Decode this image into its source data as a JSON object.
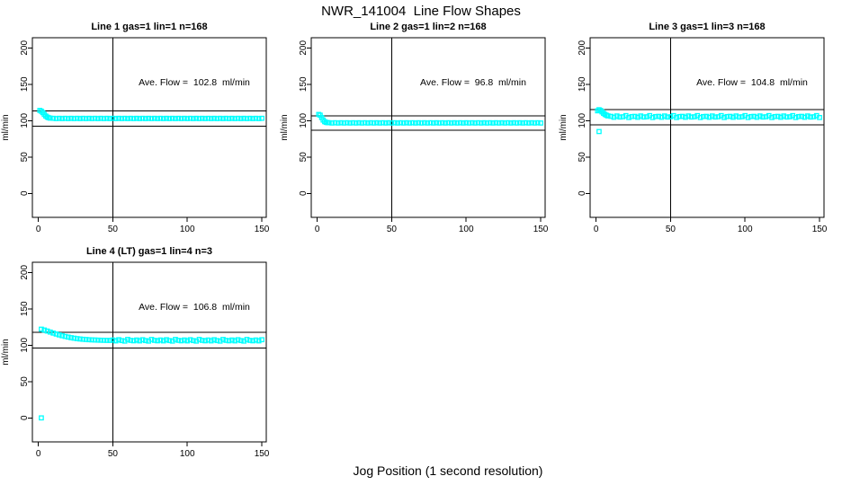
{
  "title": "NWR_141004  Line Flow Shapes",
  "xlabel": "Jog Position (1 second resolution)",
  "colors": {
    "points": "#00ffff",
    "axis": "#000000",
    "background": "#ffffff"
  },
  "chart_data": [
    {
      "type": "scatter",
      "title": "Line 1 gas=1 lin=1 n=168",
      "annotation": "Ave. Flow =  102.8  ml/min",
      "ave_flow": 102.8,
      "n": 168,
      "ylabel": "ml/min",
      "marker": "open-square",
      "xticks": [
        0,
        50,
        100,
        150
      ],
      "yticks": [
        0,
        50,
        100,
        150,
        200
      ],
      "xlim": [
        -4,
        153
      ],
      "ylim": [
        -33,
        214
      ],
      "vline_x": 50,
      "hlines_y": [
        113.1,
        92.5
      ],
      "points": [
        [
          1,
          114
        ],
        [
          2,
          113
        ],
        [
          3,
          111
        ],
        [
          4,
          108.5
        ],
        [
          5,
          106.3
        ],
        [
          6,
          104.8
        ],
        [
          7,
          103.9
        ],
        [
          8,
          103.4
        ],
        [
          10,
          103.2
        ],
        [
          12,
          102.8
        ],
        [
          14,
          103.2
        ],
        [
          16,
          102.8
        ],
        [
          18,
          103.2
        ],
        [
          20,
          102.8
        ],
        [
          22,
          103.2
        ],
        [
          24,
          102.8
        ],
        [
          26,
          103.2
        ],
        [
          28,
          102.8
        ],
        [
          30,
          103.2
        ],
        [
          32,
          102.8
        ],
        [
          34,
          103.2
        ],
        [
          36,
          102.8
        ],
        [
          38,
          103.2
        ],
        [
          40,
          102.8
        ],
        [
          42,
          103.2
        ],
        [
          44,
          102.8
        ],
        [
          46,
          103.2
        ],
        [
          48,
          102.8
        ],
        [
          50,
          103.2
        ],
        [
          52,
          102.8
        ],
        [
          54,
          103.2
        ],
        [
          56,
          102.8
        ],
        [
          58,
          103.2
        ],
        [
          60,
          102.8
        ],
        [
          62,
          103.2
        ],
        [
          64,
          102.8
        ],
        [
          66,
          103.2
        ],
        [
          68,
          102.8
        ],
        [
          70,
          103.2
        ],
        [
          72,
          102.8
        ],
        [
          74,
          103.2
        ],
        [
          76,
          102.8
        ],
        [
          78,
          103.2
        ],
        [
          80,
          102.8
        ],
        [
          82,
          103.2
        ],
        [
          84,
          102.8
        ],
        [
          86,
          103.2
        ],
        [
          88,
          102.8
        ],
        [
          90,
          103.2
        ],
        [
          92,
          102.8
        ],
        [
          94,
          103.2
        ],
        [
          96,
          102.8
        ],
        [
          98,
          103.2
        ],
        [
          100,
          102.8
        ],
        [
          102,
          103.2
        ],
        [
          104,
          102.8
        ],
        [
          106,
          103.2
        ],
        [
          108,
          102.8
        ],
        [
          110,
          103.2
        ],
        [
          112,
          102.8
        ],
        [
          114,
          103.2
        ],
        [
          116,
          102.8
        ],
        [
          118,
          103.2
        ],
        [
          120,
          102.8
        ],
        [
          122,
          103.2
        ],
        [
          124,
          102.8
        ],
        [
          126,
          103.2
        ],
        [
          128,
          102.8
        ],
        [
          130,
          103.2
        ],
        [
          132,
          102.8
        ],
        [
          134,
          103.2
        ],
        [
          136,
          102.8
        ],
        [
          138,
          103.2
        ],
        [
          140,
          102.8
        ],
        [
          142,
          103.2
        ],
        [
          144,
          102.8
        ],
        [
          146,
          103.2
        ],
        [
          148,
          102.8
        ],
        [
          150,
          103.2
        ]
      ]
    },
    {
      "type": "scatter",
      "title": "Line 2 gas=1 lin=2 n=168",
      "annotation": "Ave. Flow =  96.8  ml/min",
      "ave_flow": 96.8,
      "n": 168,
      "ylabel": "ml/min",
      "marker": "open-square",
      "xticks": [
        0,
        50,
        100,
        150
      ],
      "yticks": [
        0,
        50,
        100,
        150,
        200
      ],
      "xlim": [
        -4,
        153
      ],
      "ylim": [
        -33,
        214
      ],
      "vline_x": 50,
      "hlines_y": [
        106.5,
        87.1
      ],
      "points": [
        [
          1,
          108.5
        ],
        [
          2,
          107.5
        ],
        [
          3,
          104.2
        ],
        [
          4,
          100.8
        ],
        [
          5,
          98.6
        ],
        [
          6,
          97.6
        ],
        [
          7,
          97.2
        ],
        [
          8,
          97.1
        ],
        [
          10,
          96.7
        ],
        [
          12,
          97.1
        ],
        [
          14,
          96.7
        ],
        [
          16,
          97.1
        ],
        [
          18,
          96.7
        ],
        [
          20,
          97.1
        ],
        [
          22,
          96.7
        ],
        [
          24,
          97.1
        ],
        [
          26,
          96.7
        ],
        [
          28,
          97.1
        ],
        [
          30,
          96.7
        ],
        [
          32,
          97.1
        ],
        [
          34,
          96.7
        ],
        [
          36,
          97.1
        ],
        [
          38,
          96.7
        ],
        [
          40,
          97.1
        ],
        [
          42,
          96.7
        ],
        [
          44,
          97.1
        ],
        [
          46,
          96.7
        ],
        [
          48,
          97.1
        ],
        [
          50,
          96.7
        ],
        [
          52,
          97.1
        ],
        [
          54,
          96.7
        ],
        [
          56,
          97.1
        ],
        [
          58,
          96.7
        ],
        [
          60,
          97.1
        ],
        [
          62,
          96.7
        ],
        [
          64,
          97.1
        ],
        [
          66,
          96.7
        ],
        [
          68,
          97.1
        ],
        [
          70,
          96.7
        ],
        [
          72,
          97.1
        ],
        [
          74,
          96.7
        ],
        [
          76,
          97.1
        ],
        [
          78,
          96.7
        ],
        [
          80,
          97.1
        ],
        [
          82,
          96.7
        ],
        [
          84,
          97.1
        ],
        [
          86,
          96.7
        ],
        [
          88,
          97.1
        ],
        [
          90,
          96.7
        ],
        [
          92,
          97.1
        ],
        [
          94,
          96.7
        ],
        [
          96,
          97.1
        ],
        [
          98,
          96.7
        ],
        [
          100,
          97.1
        ],
        [
          102,
          96.7
        ],
        [
          104,
          97.1
        ],
        [
          106,
          96.7
        ],
        [
          108,
          97.1
        ],
        [
          110,
          96.7
        ],
        [
          112,
          97.1
        ],
        [
          114,
          96.7
        ],
        [
          116,
          97.1
        ],
        [
          118,
          96.7
        ],
        [
          120,
          97.1
        ],
        [
          122,
          96.7
        ],
        [
          124,
          97.1
        ],
        [
          126,
          96.7
        ],
        [
          128,
          97.1
        ],
        [
          130,
          96.7
        ],
        [
          132,
          97.1
        ],
        [
          134,
          96.7
        ],
        [
          136,
          97.1
        ],
        [
          138,
          96.7
        ],
        [
          140,
          97.1
        ],
        [
          142,
          96.7
        ],
        [
          144,
          97.1
        ],
        [
          146,
          96.7
        ],
        [
          148,
          97.1
        ],
        [
          150,
          96.7
        ]
      ]
    },
    {
      "type": "scatter",
      "title": "Line 3 gas=1 lin=3 n=168",
      "annotation": "Ave. Flow =  104.8  ml/min",
      "ave_flow": 104.8,
      "n": 168,
      "ylabel": "ml/min",
      "marker": "open-square",
      "xticks": [
        0,
        50,
        100,
        150
      ],
      "yticks": [
        0,
        50,
        100,
        150,
        200
      ],
      "xlim": [
        -4,
        153
      ],
      "ylim": [
        -33,
        214
      ],
      "vline_x": 50,
      "hlines_y": [
        115.3,
        94.3
      ],
      "points": [
        [
          1,
          113.5
        ],
        [
          2,
          115
        ],
        [
          2,
          85
        ],
        [
          3,
          114
        ],
        [
          4,
          112
        ],
        [
          5,
          110
        ],
        [
          6,
          108.5
        ],
        [
          7,
          107.3
        ],
        [
          8,
          106.5
        ],
        [
          10,
          105.9
        ],
        [
          12,
          104.6
        ],
        [
          14,
          106.4
        ],
        [
          16,
          104.9
        ],
        [
          18,
          105.3
        ],
        [
          20,
          106.9
        ],
        [
          22,
          104.3
        ],
        [
          24,
          105.6
        ],
        [
          26,
          105.9
        ],
        [
          28,
          104.6
        ],
        [
          30,
          106.4
        ],
        [
          32,
          104.9
        ],
        [
          34,
          105.3
        ],
        [
          36,
          106.9
        ],
        [
          38,
          104.3
        ],
        [
          40,
          105.6
        ],
        [
          42,
          105.9
        ],
        [
          44,
          104.6
        ],
        [
          46,
          106.4
        ],
        [
          48,
          104.9
        ],
        [
          50,
          105.3
        ],
        [
          52,
          106.9
        ],
        [
          54,
          104.3
        ],
        [
          56,
          105.6
        ],
        [
          58,
          105.9
        ],
        [
          60,
          104.6
        ],
        [
          62,
          106.4
        ],
        [
          64,
          104.9
        ],
        [
          66,
          105.3
        ],
        [
          68,
          106.9
        ],
        [
          70,
          104.3
        ],
        [
          72,
          105.6
        ],
        [
          74,
          105.9
        ],
        [
          76,
          104.6
        ],
        [
          78,
          106.4
        ],
        [
          80,
          104.9
        ],
        [
          82,
          105.3
        ],
        [
          84,
          106.9
        ],
        [
          86,
          104.3
        ],
        [
          88,
          105.6
        ],
        [
          90,
          105.9
        ],
        [
          92,
          104.6
        ],
        [
          94,
          106.4
        ],
        [
          96,
          104.9
        ],
        [
          98,
          105.3
        ],
        [
          100,
          106.9
        ],
        [
          102,
          104.3
        ],
        [
          104,
          105.6
        ],
        [
          106,
          105.9
        ],
        [
          108,
          104.6
        ],
        [
          110,
          106.4
        ],
        [
          112,
          104.9
        ],
        [
          114,
          105.3
        ],
        [
          116,
          106.9
        ],
        [
          118,
          104.3
        ],
        [
          120,
          105.6
        ],
        [
          122,
          105.9
        ],
        [
          124,
          104.6
        ],
        [
          126,
          106.4
        ],
        [
          128,
          104.9
        ],
        [
          130,
          105.3
        ],
        [
          132,
          106.9
        ],
        [
          134,
          104.3
        ],
        [
          136,
          105.6
        ],
        [
          138,
          105.9
        ],
        [
          140,
          104.6
        ],
        [
          142,
          106.4
        ],
        [
          144,
          104.9
        ],
        [
          146,
          105.3
        ],
        [
          148,
          106.9
        ],
        [
          150,
          104.3
        ]
      ]
    },
    {
      "type": "scatter",
      "title": "Line 4 (LT) gas=1 lin=4 n=3",
      "annotation": "Ave. Flow =  106.8  ml/min",
      "ave_flow": 106.8,
      "n": 3,
      "ylabel": "ml/min",
      "marker": "open-square",
      "xticks": [
        0,
        50,
        100,
        150
      ],
      "yticks": [
        0,
        50,
        100,
        150,
        200
      ],
      "xlim": [
        -4,
        153
      ],
      "ylim": [
        -33,
        214
      ],
      "vline_x": 50,
      "hlines_y": [
        117.5,
        96.1
      ],
      "points": [
        [
          2,
          0
        ],
        [
          2,
          122
        ],
        [
          4,
          120.8
        ],
        [
          6,
          119.4
        ],
        [
          8,
          118
        ],
        [
          10,
          116.6
        ],
        [
          12,
          115.3
        ],
        [
          14,
          114.1
        ],
        [
          16,
          113
        ],
        [
          18,
          112
        ],
        [
          20,
          111.1
        ],
        [
          22,
          110.3
        ],
        [
          24,
          109.6
        ],
        [
          26,
          109
        ],
        [
          28,
          108.5
        ],
        [
          30,
          108.1
        ],
        [
          32,
          107.8
        ],
        [
          34,
          107.5
        ],
        [
          36,
          107.3
        ],
        [
          38,
          107.1
        ],
        [
          40,
          106.9
        ],
        [
          42,
          106.8
        ],
        [
          44,
          106.7
        ],
        [
          46,
          106.6
        ],
        [
          48,
          106.5
        ],
        [
          50,
          107.1
        ],
        [
          52,
          105.9
        ],
        [
          54,
          107.5
        ],
        [
          56,
          106.3
        ],
        [
          58,
          105.6
        ],
        [
          60,
          107.9
        ],
        [
          62,
          106.6
        ],
        [
          64,
          106.0
        ],
        [
          66,
          107.1
        ],
        [
          68,
          105.9
        ],
        [
          70,
          107.5
        ],
        [
          72,
          106.3
        ],
        [
          74,
          105.6
        ],
        [
          76,
          107.9
        ],
        [
          78,
          106.6
        ],
        [
          80,
          106.0
        ],
        [
          82,
          107.1
        ],
        [
          84,
          105.9
        ],
        [
          86,
          107.5
        ],
        [
          88,
          106.3
        ],
        [
          90,
          105.6
        ],
        [
          92,
          107.9
        ],
        [
          94,
          106.6
        ],
        [
          96,
          106.0
        ],
        [
          98,
          107.1
        ],
        [
          100,
          105.9
        ],
        [
          102,
          107.5
        ],
        [
          104,
          106.3
        ],
        [
          106,
          105.6
        ],
        [
          108,
          107.9
        ],
        [
          110,
          106.6
        ],
        [
          112,
          106.0
        ],
        [
          114,
          107.1
        ],
        [
          116,
          105.9
        ],
        [
          118,
          107.5
        ],
        [
          120,
          106.3
        ],
        [
          122,
          105.6
        ],
        [
          124,
          107.9
        ],
        [
          126,
          106.6
        ],
        [
          128,
          106.0
        ],
        [
          130,
          107.1
        ],
        [
          132,
          105.9
        ],
        [
          134,
          107.5
        ],
        [
          136,
          106.3
        ],
        [
          138,
          105.6
        ],
        [
          140,
          107.9
        ],
        [
          142,
          106.6
        ],
        [
          144,
          106.0
        ],
        [
          146,
          107.1
        ],
        [
          148,
          105.9
        ],
        [
          150,
          107.5
        ]
      ]
    }
  ]
}
